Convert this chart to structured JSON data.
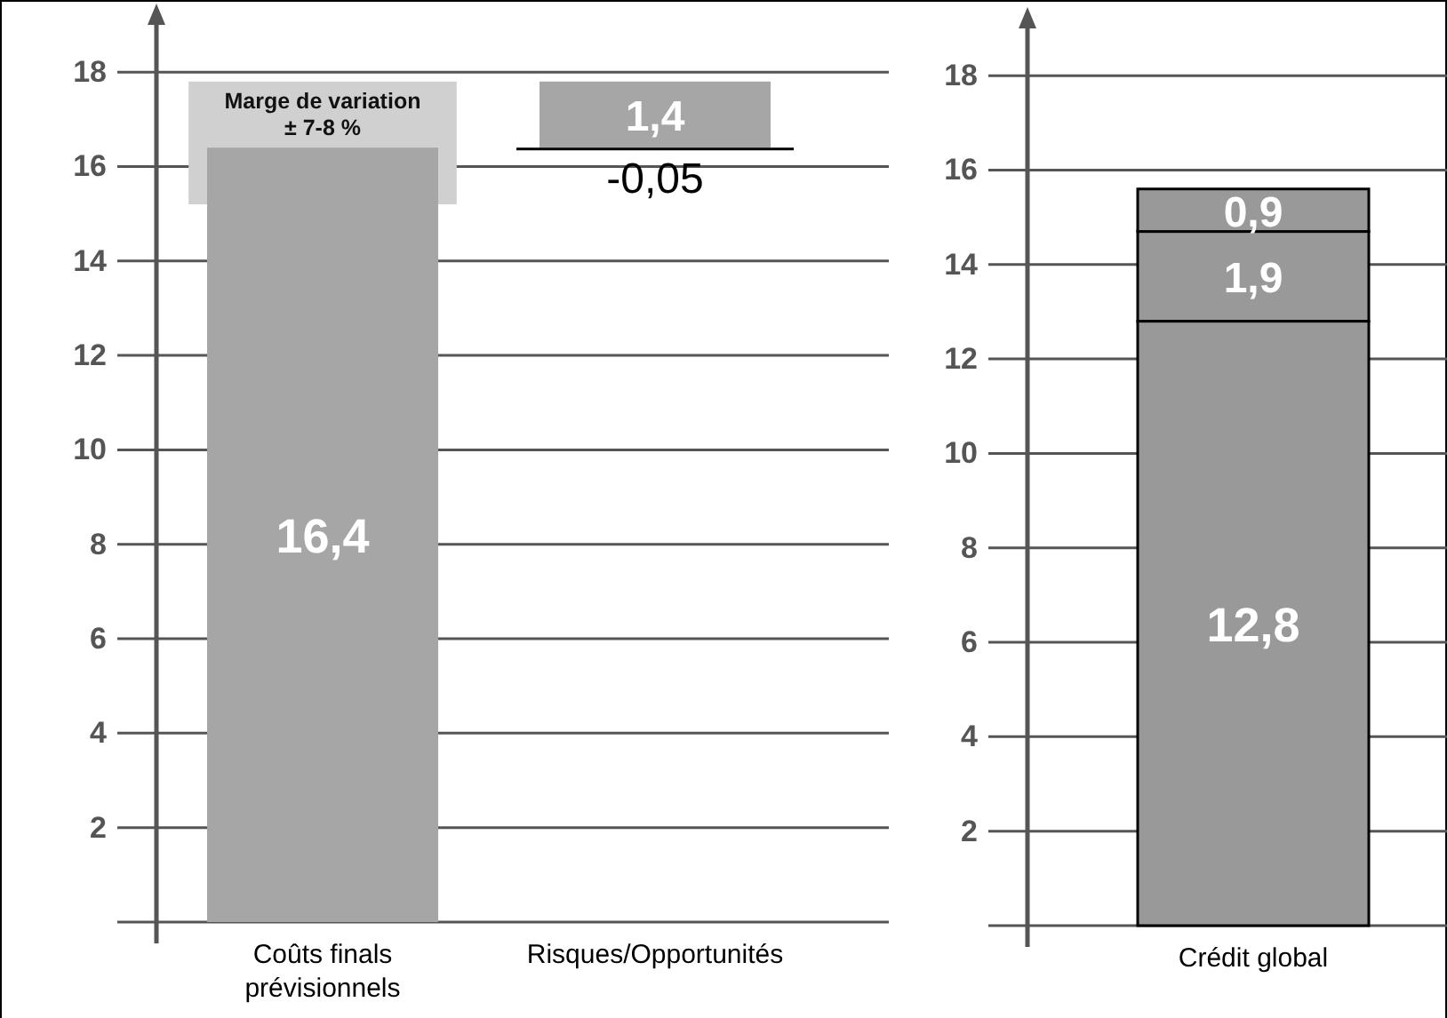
{
  "chart_data": [
    {
      "type": "bar",
      "categories": [
        "Coûts finals prévisionnels",
        "Risques/Opportunités"
      ],
      "series": [
        {
          "color": "#d0d0d0",
          "values": [
            2.6,
            null
          ],
          "base": [
            15.2,
            null
          ]
        },
        {
          "color": "#a6a6a6",
          "values": [
            16.4,
            1.4
          ],
          "base": [
            0,
            16.4
          ],
          "value_labels": [
            "16,4",
            "1,4"
          ]
        },
        {
          "color": "#000000",
          "values": [
            null,
            -0.05
          ],
          "base": [
            null,
            16.4
          ],
          "value_labels": [
            null,
            "-0,05"
          ]
        }
      ],
      "annotations": [
        {
          "text": "Marge de variation\n± 7-8 %",
          "x": "Coûts finals prévisionnels",
          "y": 17.8
        }
      ],
      "ylim": [
        0,
        19
      ],
      "yticks": [
        2,
        4,
        6,
        8,
        10,
        12,
        14,
        16,
        18
      ],
      "grid": "y"
    },
    {
      "type": "bar",
      "stacked": true,
      "categories": [
        "Crédit global"
      ],
      "series": [
        {
          "color": "#999999",
          "values": [
            12.8
          ],
          "value_labels": [
            "12,8"
          ]
        },
        {
          "color": "#999999",
          "values": [
            1.9
          ],
          "value_labels": [
            "1,9"
          ]
        },
        {
          "color": "#999999",
          "values": [
            0.9
          ],
          "value_labels": [
            "0,9"
          ]
        }
      ],
      "ylim": [
        0,
        19
      ],
      "yticks": [
        2,
        4,
        6,
        8,
        10,
        12,
        14,
        16,
        18
      ],
      "grid": "y"
    }
  ]
}
